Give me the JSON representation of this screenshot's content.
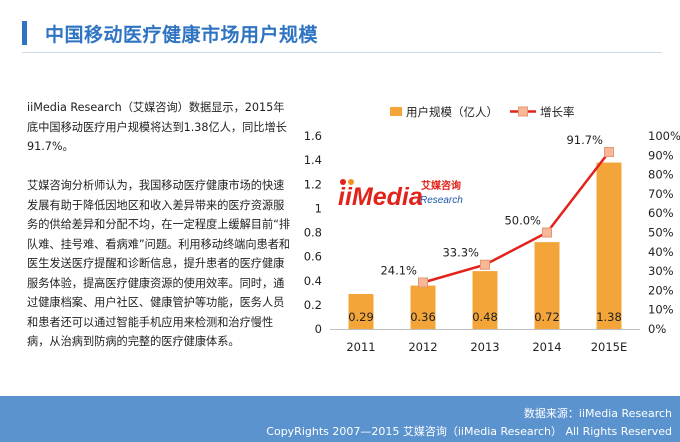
{
  "header": {
    "title": "中国移动医疗健康市场用户规模"
  },
  "text": {
    "para1": "iiMedia Research（艾媒咨询）数据显示，2015年底中国移动医疗用户规模将达到1.38亿人，同比增长91.7%。",
    "para2": "艾媒咨询分析师认为，我国移动医疗健康市场的快速发展有助于降低因地区和收入差异带来的医疗资源服务的供给差异和分配不均，在一定程度上缓解目前“排队难、挂号难、看病难”问题。利用移动终端向患者和医生发送医疗提醒和诊断信息，提升患者的医疗健康服务体验，提高医疗健康资源的使用效率。同时，通过健康档案、用户社区、健康管护等功能，医务人员和患者还可以通过智能手机应用来检测和治疗慢性病，从治病到防病的完整的医疗健康体系。"
  },
  "logo": {
    "main": "iiMedia",
    "cn": "艾媒咨询",
    "sub": "Research"
  },
  "chart_data": {
    "type": "bar",
    "categories": [
      "2011",
      "2012",
      "2013",
      "2014",
      "2015E"
    ],
    "series": [
      {
        "name": "用户规模（亿人）",
        "type": "bar",
        "axis": "left",
        "color": "#f4a53a",
        "values": [
          0.29,
          0.36,
          0.48,
          0.72,
          1.38
        ],
        "labels": [
          "0.29",
          "0.36",
          "0.48",
          "0.72",
          "1.38"
        ]
      },
      {
        "name": "增长率",
        "type": "line",
        "axis": "right",
        "color": "#e2231a",
        "values": [
          null,
          24.1,
          33.3,
          50.0,
          91.7
        ],
        "labels": [
          "",
          "24.1%",
          "33.3%",
          "50.0%",
          "91.7%"
        ]
      }
    ],
    "ylim": [
      0,
      1.6
    ],
    "yticks": [
      "0",
      "0.2",
      "0.4",
      "0.6",
      "0.8",
      "1",
      "1.2",
      "1.4",
      "1.6"
    ],
    "y2lim": [
      0,
      100
    ],
    "y2ticks": [
      "0%",
      "10%",
      "20%",
      "30%",
      "40%",
      "50%",
      "60%",
      "70%",
      "80%",
      "90%",
      "100%"
    ],
    "legend_position": "top",
    "grid": false
  },
  "footer": {
    "source": "数据来源：iiMedia Research",
    "copyright": "CopyRights 2007—2015 艾媒咨询（iiMedia Research） All Rights Reserved"
  }
}
